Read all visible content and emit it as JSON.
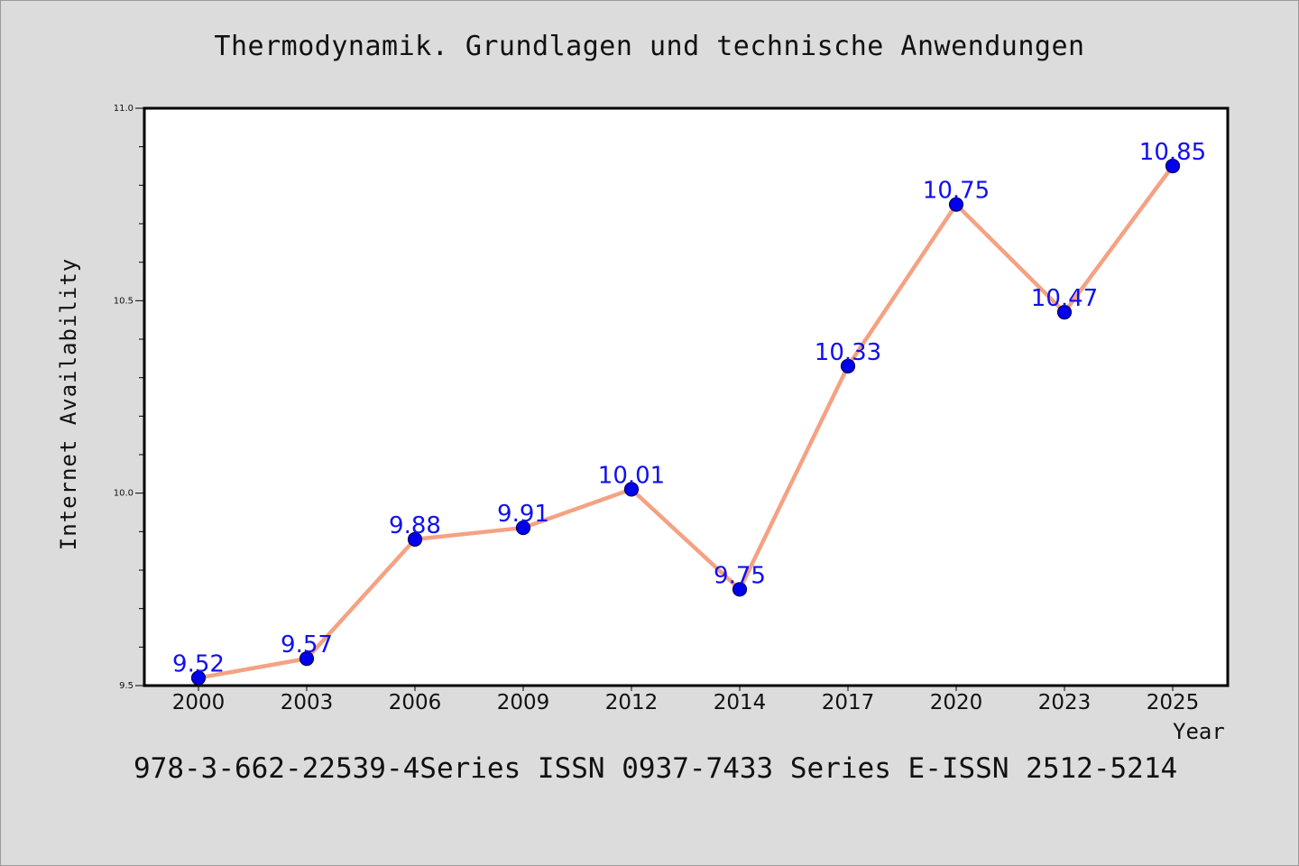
{
  "chart_data": {
    "type": "line",
    "title": "Thermodynamik. Grundlagen und technische Anwendungen",
    "xlabel": "Year",
    "ylabel": "Internet Availability",
    "categories": [
      "2000",
      "2003",
      "2006",
      "2009",
      "2012",
      "2014",
      "2017",
      "2020",
      "2023",
      "2025"
    ],
    "series": [
      {
        "values": [
          9.52,
          9.57,
          9.88,
          9.91,
          10.01,
          9.75,
          10.33,
          10.75,
          10.47,
          10.85
        ],
        "labels": [
          "9.52",
          "9.57",
          "9.88",
          "9.91",
          "10.01",
          "9.75",
          "10.33",
          "10.75",
          "10.47",
          "10.85"
        ]
      }
    ],
    "ylim": [
      9.5,
      11.0
    ],
    "yticks": [
      "9.5",
      "10.0",
      "10.5",
      "11.0"
    ],
    "grid": false,
    "line_color": "#f4a283",
    "marker_color": "#0000ee",
    "label_color": "#1010ee"
  },
  "footer": "978-3-662-22539-4Series ISSN 0937-7433 Series E-ISSN 2512-5214"
}
